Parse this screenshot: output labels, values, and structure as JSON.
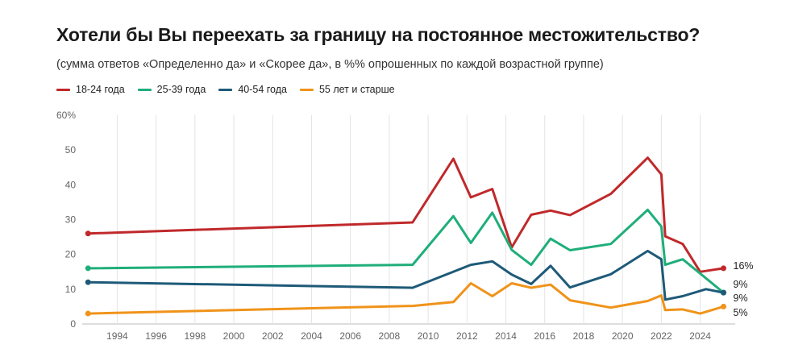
{
  "chart_data": {
    "type": "line",
    "title": "Хотели бы Вы переехать за границу на постоянное местожительство?",
    "subtitle": "(сумма ответов «Определенно да» и «Скорее да», в %% опрошенных по каждой возрастной группе)",
    "ylim": [
      0,
      60
    ],
    "xlim": [
      1992.2,
      2025.8
    ],
    "y_ticks": [
      "0",
      "10",
      "20",
      "30",
      "40",
      "50",
      "60%"
    ],
    "x_ticks": [
      "1994",
      "1996",
      "1998",
      "2000",
      "2002",
      "2004",
      "2006",
      "2008",
      "2010",
      "2012",
      "2014",
      "2016",
      "2018",
      "2020",
      "2022",
      "2024"
    ],
    "grid": "vertical",
    "legend_position": "top-left",
    "series": [
      {
        "name": "18-24 года",
        "color": "#c0292b",
        "end_label": "16%",
        "points": [
          [
            1992.5,
            26
          ],
          [
            2009.2,
            29.2
          ],
          [
            2011.3,
            47.5
          ],
          [
            2012.2,
            36.4
          ],
          [
            2013.3,
            38.8
          ],
          [
            2014.3,
            22
          ],
          [
            2015.3,
            31.4
          ],
          [
            2016.3,
            32.6
          ],
          [
            2017.3,
            31.3
          ],
          [
            2019.4,
            37.4
          ],
          [
            2021.3,
            47.8
          ],
          [
            2022.0,
            43
          ],
          [
            2022.2,
            25.2
          ],
          [
            2023.1,
            23
          ],
          [
            2024.0,
            15
          ],
          [
            2025.2,
            16
          ]
        ]
      },
      {
        "name": "25-39 года",
        "color": "#1fae7a",
        "end_label": "9%",
        "points": [
          [
            1992.5,
            16
          ],
          [
            2009.2,
            17
          ],
          [
            2011.3,
            31
          ],
          [
            2012.2,
            23.3
          ],
          [
            2013.3,
            32
          ],
          [
            2014.3,
            21.3
          ],
          [
            2015.3,
            17
          ],
          [
            2016.3,
            24.5
          ],
          [
            2017.3,
            21.2
          ],
          [
            2019.4,
            23
          ],
          [
            2021.3,
            32.8
          ],
          [
            2022.0,
            28
          ],
          [
            2022.2,
            17
          ],
          [
            2023.1,
            18.6
          ],
          [
            2025.2,
            9
          ]
        ]
      },
      {
        "name": "40-54 года",
        "color": "#1e5a78",
        "end_label": "9%",
        "points": [
          [
            1992.5,
            12
          ],
          [
            2009.2,
            10.4
          ],
          [
            2012.2,
            17
          ],
          [
            2013.3,
            18
          ],
          [
            2014.3,
            14.2
          ],
          [
            2015.3,
            11.5
          ],
          [
            2016.3,
            16.7
          ],
          [
            2017.3,
            10.5
          ],
          [
            2019.4,
            14.3
          ],
          [
            2021.3,
            21
          ],
          [
            2022.0,
            18.6
          ],
          [
            2022.2,
            7
          ],
          [
            2023.1,
            8
          ],
          [
            2024.3,
            10
          ],
          [
            2025.2,
            9
          ]
        ]
      },
      {
        "name": "55 лет и старше",
        "color": "#f0931a",
        "end_label": "5%",
        "points": [
          [
            1992.5,
            3
          ],
          [
            2009.2,
            5.2
          ],
          [
            2011.3,
            6.3
          ],
          [
            2012.2,
            11.7
          ],
          [
            2013.3,
            8
          ],
          [
            2014.3,
            11.7
          ],
          [
            2015.3,
            10.4
          ],
          [
            2016.3,
            11.3
          ],
          [
            2017.3,
            6.8
          ],
          [
            2019.4,
            4.7
          ],
          [
            2021.3,
            6.6
          ],
          [
            2022.0,
            8.2
          ],
          [
            2022.2,
            4
          ],
          [
            2023.1,
            4.2
          ],
          [
            2024.0,
            3
          ],
          [
            2025.2,
            5
          ]
        ]
      }
    ]
  }
}
